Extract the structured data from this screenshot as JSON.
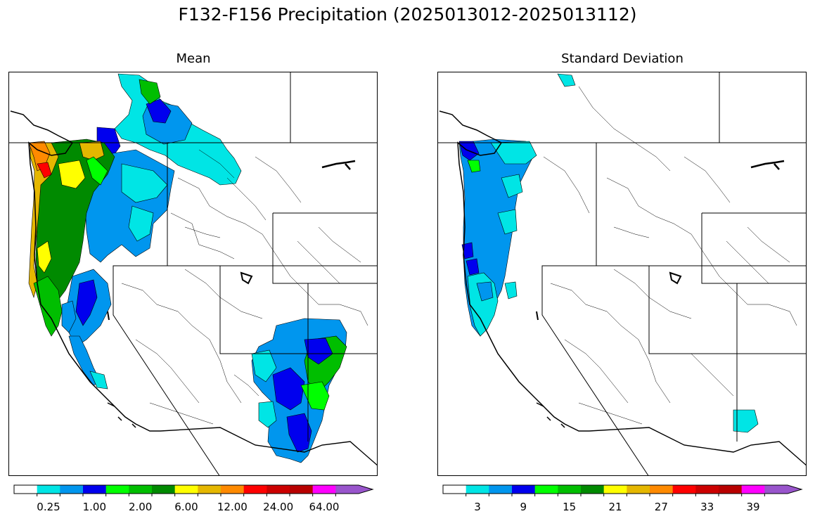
{
  "title": "F132-F156 Precipitation (2025013012-2025013112)",
  "panels": [
    {
      "id": "mean",
      "title": "Mean",
      "colorbar": {
        "tick_labels": [
          "0.25",
          "1.00",
          "2.00",
          "6.00",
          "12.00",
          "24.00",
          "64.00"
        ],
        "tick_bin_index": [
          1,
          3,
          5,
          7,
          9,
          11,
          13
        ]
      }
    },
    {
      "id": "std",
      "title": "Standard Deviation",
      "colorbar": {
        "tick_labels": [
          "3",
          "9",
          "15",
          "21",
          "27",
          "33",
          "39"
        ],
        "tick_bin_index": [
          1,
          3,
          5,
          7,
          9,
          11,
          13
        ]
      }
    }
  ],
  "colorscale": {
    "colors": [
      "#ffffff",
      "#00e5e5",
      "#0096ee",
      "#0000ee",
      "#00ff00",
      "#00be00",
      "#008a00",
      "#ffff00",
      "#e5b700",
      "#ff8a00",
      "#ff0000",
      "#cc0000",
      "#b80000",
      "#ff00ff",
      "#9955cc"
    ],
    "extend": "max"
  }
}
